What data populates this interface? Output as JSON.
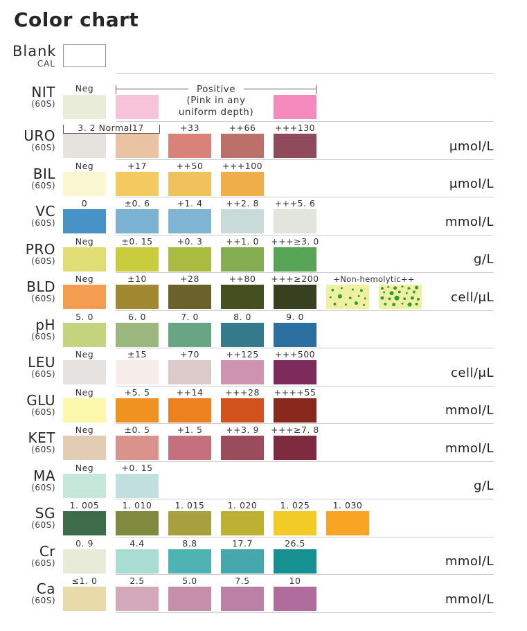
{
  "blank": {
    "label": "Blank",
    "sub": "CAL"
  },
  "chart_data": {
    "type": "table",
    "title": "Color chart",
    "description": "Urinalysis reagent strip color reference chart; each row maps swatch colors to analyte concentrations",
    "rows": [
      {
        "name": "NIT",
        "sub": "(60S)",
        "unit": "",
        "positive": {
          "label": "Positive",
          "sub1": "(Pink in any",
          "sub2": "uniform depth)",
          "from": 1,
          "to": 4
        },
        "swatches": [
          {
            "col": 0,
            "label": "Neg",
            "color": "#eaecda"
          },
          {
            "col": 1,
            "label": "",
            "color": "#f7c3d8"
          },
          {
            "col": 4,
            "label": "",
            "color": "#f48bbc"
          }
        ]
      },
      {
        "name": "URO",
        "sub": "(60S)",
        "unit": "μmol/L",
        "bracket": {
          "label": "3. 2 Normal17",
          "from": 0,
          "to": 1
        },
        "swatches": [
          {
            "col": 0,
            "label": "",
            "color": "#e6e2dd"
          },
          {
            "col": 1,
            "label": "",
            "color": "#e9c3a4"
          },
          {
            "col": 2,
            "label": "+33",
            "color": "#d8827a"
          },
          {
            "col": 3,
            "label": "++66",
            "color": "#bb7169"
          },
          {
            "col": 4,
            "label": "+++130",
            "color": "#8f4a5c"
          }
        ]
      },
      {
        "name": "BIL",
        "sub": "(60S)",
        "unit": "μmol/L",
        "swatches": [
          {
            "col": 0,
            "label": "Neg",
            "color": "#faf7d0"
          },
          {
            "col": 1,
            "label": "+17",
            "color": "#f4c95f"
          },
          {
            "col": 2,
            "label": "++50",
            "color": "#f0c15c"
          },
          {
            "col": 3,
            "label": "+++100",
            "color": "#efae49"
          }
        ]
      },
      {
        "name": "VC",
        "sub": "(60S)",
        "unit": "mmol/L",
        "swatches": [
          {
            "col": 0,
            "label": "0",
            "color": "#4892c8"
          },
          {
            "col": 1,
            "label": "±0. 6",
            "color": "#7bb1d2"
          },
          {
            "col": 2,
            "label": "+1. 4",
            "color": "#7fb4d3"
          },
          {
            "col": 3,
            "label": "++2. 8",
            "color": "#c8dbd9"
          },
          {
            "col": 4,
            "label": "+++5. 6",
            "color": "#e2e4de"
          }
        ]
      },
      {
        "name": "PRO",
        "sub": "(60S)",
        "unit": "g/L",
        "swatches": [
          {
            "col": 0,
            "label": "Neg",
            "color": "#e0dd75"
          },
          {
            "col": 1,
            "label": "±0. 15",
            "color": "#c9cc3c"
          },
          {
            "col": 2,
            "label": "+0. 3",
            "color": "#aabb41"
          },
          {
            "col": 3,
            "label": "++1. 0",
            "color": "#84ac51"
          },
          {
            "col": 4,
            "label": "+++≥3. 0",
            "color": "#57a457"
          }
        ]
      },
      {
        "name": "BLD",
        "sub": "(60S)",
        "unit": "cell/μL",
        "extra_label": {
          "text": "+Non-hemolytic++",
          "from": 5,
          "to": 6
        },
        "swatches": [
          {
            "col": 0,
            "label": "Neg",
            "color": "#f49c4f"
          },
          {
            "col": 1,
            "label": "±10",
            "color": "#a08730"
          },
          {
            "col": 2,
            "label": "+28",
            "color": "#6a622a"
          },
          {
            "col": 3,
            "label": "++80",
            "color": "#44501f"
          },
          {
            "col": 4,
            "label": "+++≥200",
            "color": "#37411f"
          },
          {
            "col": 5,
            "label": "",
            "color": "#eff0a0",
            "speckle": "light"
          },
          {
            "col": 6,
            "label": "",
            "color": "#eff0a0",
            "speckle": "dense"
          }
        ]
      },
      {
        "name": "pH",
        "sub": "(60S)",
        "unit": "",
        "swatches": [
          {
            "col": 0,
            "label": "5. 0",
            "color": "#c3d37e"
          },
          {
            "col": 1,
            "label": "6. 0",
            "color": "#9cb77d"
          },
          {
            "col": 2,
            "label": "7. 0",
            "color": "#67a584"
          },
          {
            "col": 3,
            "label": "8. 0",
            "color": "#35798d"
          },
          {
            "col": 4,
            "label": "9. 0",
            "color": "#2a6fa0"
          }
        ]
      },
      {
        "name": "LEU",
        "sub": "(60S)",
        "unit": "cell/μL",
        "swatches": [
          {
            "col": 0,
            "label": "Neg",
            "color": "#e5e2df"
          },
          {
            "col": 1,
            "label": "±15",
            "color": "#f6ece9"
          },
          {
            "col": 2,
            "label": "+70",
            "color": "#dcc9c9"
          },
          {
            "col": 3,
            "label": "++125",
            "color": "#cd93b0"
          },
          {
            "col": 4,
            "label": "+++500",
            "color": "#7d2b5d"
          }
        ]
      },
      {
        "name": "GLU",
        "sub": "(60S)",
        "unit": "mmol/L",
        "swatches": [
          {
            "col": 0,
            "label": "Neg",
            "color": "#fbf8ac"
          },
          {
            "col": 1,
            "label": "+5. 5",
            "color": "#ef9221"
          },
          {
            "col": 2,
            "label": "++14",
            "color": "#ed811f"
          },
          {
            "col": 3,
            "label": "+++28",
            "color": "#d2521d"
          },
          {
            "col": 4,
            "label": "++++55",
            "color": "#89291d"
          }
        ]
      },
      {
        "name": "KET",
        "sub": "(60S)",
        "unit": "mmol/L",
        "swatches": [
          {
            "col": 0,
            "label": "Neg",
            "color": "#e2ccb4"
          },
          {
            "col": 1,
            "label": "±0. 5",
            "color": "#d9928c"
          },
          {
            "col": 2,
            "label": "+1. 5",
            "color": "#c4707f"
          },
          {
            "col": 3,
            "label": "++3. 9",
            "color": "#9a4c5d"
          },
          {
            "col": 4,
            "label": "+++≥7. 8",
            "color": "#7e2b40"
          }
        ]
      },
      {
        "name": "MA",
        "sub": "(60S)",
        "unit": "g/L",
        "swatches": [
          {
            "col": 0,
            "label": "Neg",
            "color": "#c8e7db"
          },
          {
            "col": 1,
            "label": "+0. 15",
            "color": "#c2dfe0"
          }
        ]
      },
      {
        "name": "SG",
        "sub": "(60S)",
        "unit": "",
        "swatches": [
          {
            "col": 0,
            "label": "1. 005",
            "color": "#3e6c4a"
          },
          {
            "col": 1,
            "label": "1. 010",
            "color": "#7f8a3f"
          },
          {
            "col": 2,
            "label": "1. 015",
            "color": "#a8a03e"
          },
          {
            "col": 3,
            "label": "1. 020",
            "color": "#bcb132"
          },
          {
            "col": 4,
            "label": "1. 025",
            "color": "#f2cb27"
          },
          {
            "col": 5,
            "label": "1. 030",
            "color": "#f9a423"
          }
        ]
      },
      {
        "name": "Cr",
        "sub": "(60S)",
        "unit": "mmol/L",
        "swatches": [
          {
            "col": 0,
            "label": "0. 9",
            "color": "#e7ebd7"
          },
          {
            "col": 1,
            "label": "4.4",
            "color": "#a9dcd2"
          },
          {
            "col": 2,
            "label": "8.8",
            "color": "#4fb3b4"
          },
          {
            "col": 3,
            "label": "17.7",
            "color": "#45a7ac"
          },
          {
            "col": 4,
            "label": "26.5",
            "color": "#169091"
          }
        ]
      },
      {
        "name": "Ca",
        "sub": "(60S)",
        "unit": "mmol/L",
        "swatches": [
          {
            "col": 0,
            "label": "≤1. 0",
            "color": "#e9daa9"
          },
          {
            "col": 1,
            "label": "2.5",
            "color": "#d4a8bb"
          },
          {
            "col": 2,
            "label": "5.0",
            "color": "#c58fa9"
          },
          {
            "col": 3,
            "label": "7.5",
            "color": "#bc7fa5"
          },
          {
            "col": 4,
            "label": "10",
            "color": "#b16c9e"
          }
        ]
      }
    ]
  }
}
